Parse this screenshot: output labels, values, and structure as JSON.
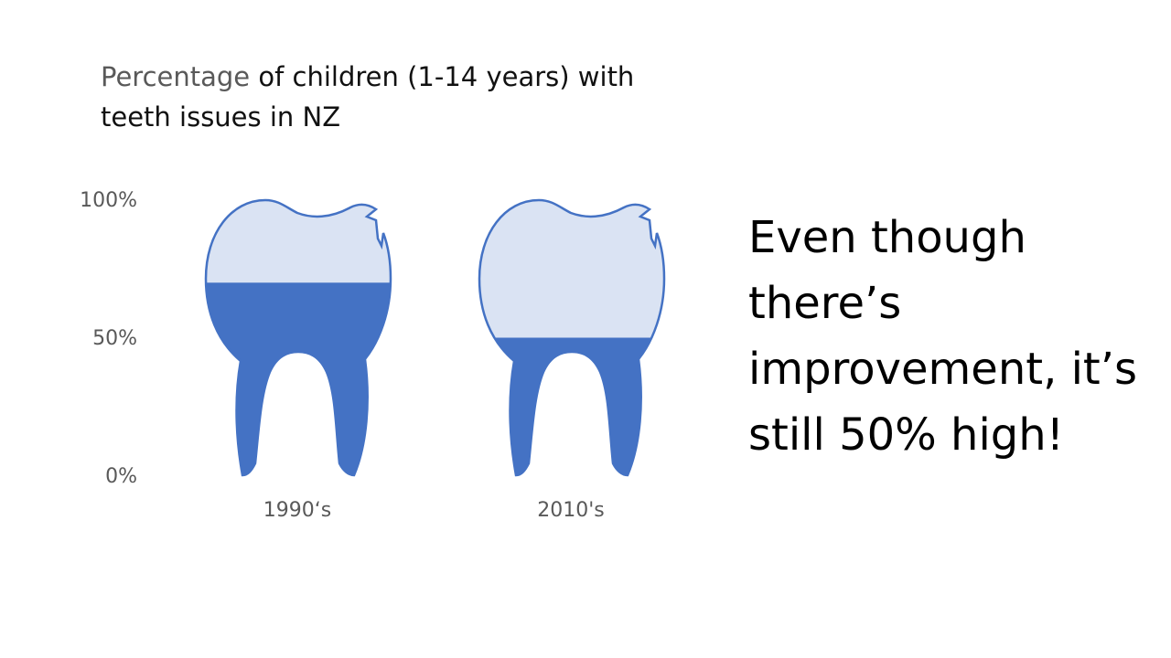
{
  "title": {
    "accent": "Percentage",
    "rest": " of children (1-14 years) with teeth issues in NZ"
  },
  "callout": "Even though there’s improvement, it’s still 50% high!",
  "colors": {
    "fill": "#4472c4",
    "empty": "#dae3f3",
    "outline": "#4472c4",
    "axis_text": "#595959"
  },
  "chart_data": {
    "type": "bar",
    "style": "pictograph-tooth",
    "categories": [
      "1990‘s",
      "2010's"
    ],
    "values": [
      70,
      50
    ],
    "ylim": [
      0,
      100
    ],
    "y_tick_labels": [
      "100%",
      "50%",
      "0%"
    ],
    "grid": false
  }
}
